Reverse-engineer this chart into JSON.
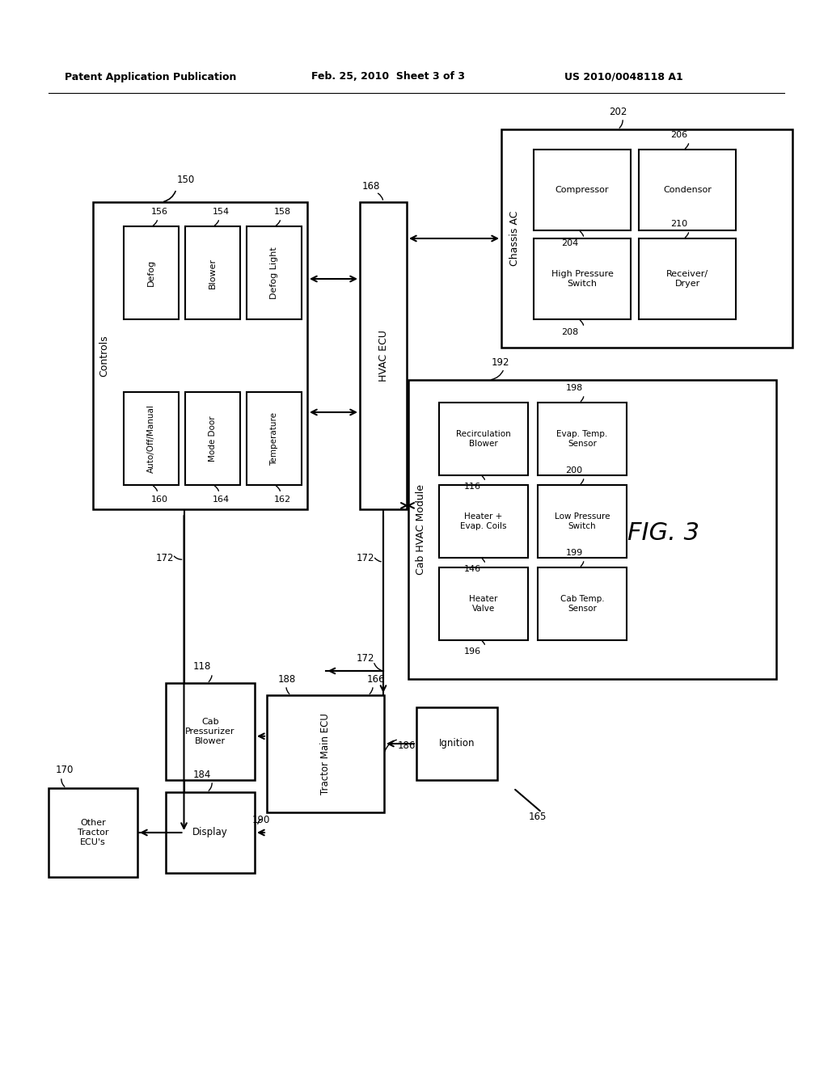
{
  "bg_color": "#ffffff",
  "header_left": "Patent Application Publication",
  "header_mid": "Feb. 25, 2010  Sheet 3 of 3",
  "header_right": "US 2010/0048118 A1",
  "fig_label": "FIG. 3"
}
